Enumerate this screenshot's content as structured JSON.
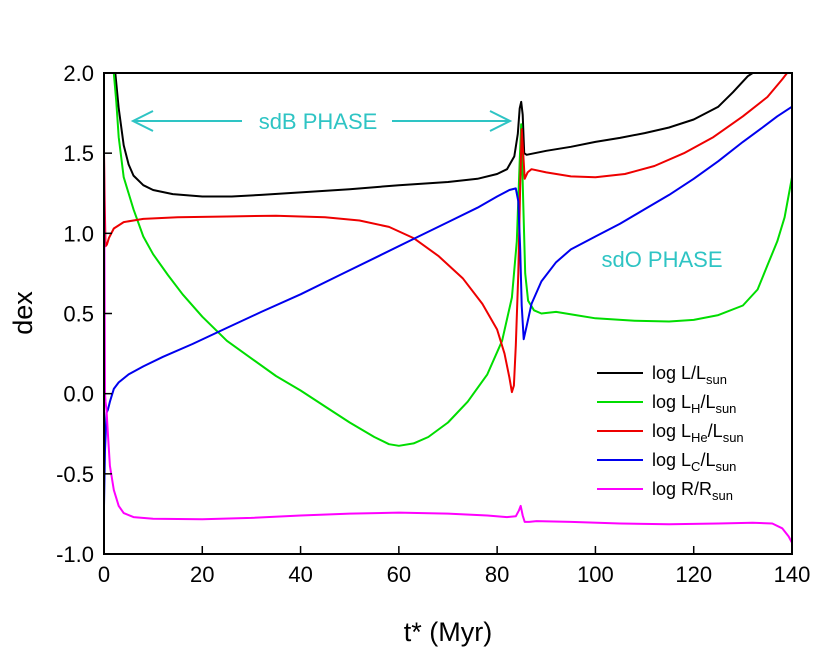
{
  "chart_data": {
    "type": "line",
    "title": "",
    "xlabel": "t* (Myr)",
    "ylabel": "dex",
    "xlim": [
      0,
      140
    ],
    "ylim": [
      -1.0,
      2.0
    ],
    "x_ticks": [
      0,
      20,
      40,
      60,
      80,
      100,
      120,
      140
    ],
    "y_ticks": [
      -1.0,
      -0.5,
      0.0,
      0.5,
      1.0,
      1.5,
      2.0
    ],
    "x_tick_labels": [
      "0",
      "20",
      "40",
      "60",
      "80",
      "100",
      "120",
      "140"
    ],
    "y_tick_labels": [
      "-1.0",
      "-0.5",
      "0.0",
      "0.5",
      "1.0",
      "1.5",
      "2.0"
    ],
    "grid": false,
    "legend_position": "right",
    "annotations": [
      {
        "text": "sdB PHASE",
        "x": 38,
        "y": 1.72,
        "arrow_from": 6,
        "arrow_to": 83,
        "color": "#2EC4C4"
      },
      {
        "text": "sdO PHASE",
        "x": 116,
        "y": 0.83,
        "color": "#2EC4C4"
      }
    ],
    "series": [
      {
        "name": "log L/Lsun",
        "legend_main": "log L/L",
        "legend_sub": "sun",
        "color": "#000000",
        "points": [
          [
            2.3,
            2.0
          ],
          [
            3,
            1.78
          ],
          [
            4,
            1.55
          ],
          [
            5,
            1.43
          ],
          [
            6,
            1.36
          ],
          [
            8,
            1.3
          ],
          [
            10,
            1.27
          ],
          [
            14,
            1.245
          ],
          [
            20,
            1.23
          ],
          [
            26,
            1.23
          ],
          [
            32,
            1.24
          ],
          [
            40,
            1.255
          ],
          [
            50,
            1.275
          ],
          [
            60,
            1.3
          ],
          [
            70,
            1.32
          ],
          [
            76,
            1.34
          ],
          [
            80,
            1.37
          ],
          [
            82,
            1.4
          ],
          [
            83.5,
            1.48
          ],
          [
            84.2,
            1.62
          ],
          [
            84.6,
            1.78
          ],
          [
            84.9,
            1.82
          ],
          [
            85.2,
            1.74
          ],
          [
            85.5,
            1.5
          ],
          [
            86,
            1.49
          ],
          [
            90,
            1.515
          ],
          [
            95,
            1.54
          ],
          [
            100,
            1.57
          ],
          [
            105,
            1.595
          ],
          [
            110,
            1.625
          ],
          [
            115,
            1.66
          ],
          [
            120,
            1.71
          ],
          [
            125,
            1.79
          ],
          [
            128,
            1.88
          ],
          [
            131,
            1.98
          ],
          [
            132,
            2.0
          ]
        ]
      },
      {
        "name": "log LH/Lsun",
        "legend_main": "log L",
        "legend_sub_1": "H",
        "legend_mid": "/L",
        "legend_sub": "sun",
        "color": "#00DD00",
        "points": [
          [
            2.0,
            2.0
          ],
          [
            2.5,
            1.82
          ],
          [
            3,
            1.6
          ],
          [
            4,
            1.35
          ],
          [
            6,
            1.15
          ],
          [
            8,
            0.98
          ],
          [
            10,
            0.87
          ],
          [
            13,
            0.74
          ],
          [
            16,
            0.62
          ],
          [
            20,
            0.48
          ],
          [
            25,
            0.33
          ],
          [
            30,
            0.22
          ],
          [
            35,
            0.11
          ],
          [
            40,
            0.02
          ],
          [
            45,
            -0.08
          ],
          [
            50,
            -0.18
          ],
          [
            55,
            -0.27
          ],
          [
            58,
            -0.315
          ],
          [
            60,
            -0.325
          ],
          [
            63,
            -0.31
          ],
          [
            66,
            -0.27
          ],
          [
            70,
            -0.18
          ],
          [
            74,
            -0.05
          ],
          [
            78,
            0.12
          ],
          [
            81,
            0.33
          ],
          [
            83,
            0.6
          ],
          [
            84,
            0.95
          ],
          [
            84.6,
            1.45
          ],
          [
            84.9,
            1.68
          ],
          [
            85.3,
            1.2
          ],
          [
            85.7,
            0.75
          ],
          [
            86.3,
            0.58
          ],
          [
            87.5,
            0.52
          ],
          [
            89,
            0.5
          ],
          [
            92,
            0.51
          ],
          [
            96,
            0.49
          ],
          [
            100,
            0.47
          ],
          [
            108,
            0.455
          ],
          [
            115,
            0.45
          ],
          [
            120,
            0.46
          ],
          [
            125,
            0.49
          ],
          [
            130,
            0.55
          ],
          [
            133,
            0.65
          ],
          [
            135,
            0.8
          ],
          [
            137,
            0.95
          ],
          [
            138.5,
            1.1
          ],
          [
            140,
            1.35
          ]
        ]
      },
      {
        "name": "log LHe/Lsun",
        "legend_main": "log L",
        "legend_sub_1": "He",
        "legend_mid": "/L",
        "legend_sub": "sun",
        "color": "#EE0000",
        "points": [
          [
            0.0,
            1.5
          ],
          [
            0.15,
            1.2
          ],
          [
            0.3,
            0.92
          ],
          [
            0.6,
            0.93
          ],
          [
            1.0,
            0.97
          ],
          [
            2,
            1.03
          ],
          [
            4,
            1.07
          ],
          [
            8,
            1.09
          ],
          [
            15,
            1.1
          ],
          [
            25,
            1.105
          ],
          [
            35,
            1.11
          ],
          [
            45,
            1.1
          ],
          [
            52,
            1.08
          ],
          [
            58,
            1.04
          ],
          [
            63,
            0.97
          ],
          [
            68,
            0.86
          ],
          [
            73,
            0.72
          ],
          [
            77,
            0.56
          ],
          [
            80,
            0.4
          ],
          [
            81.5,
            0.25
          ],
          [
            82.5,
            0.1
          ],
          [
            83,
            0.01
          ],
          [
            83.4,
            0.05
          ],
          [
            83.8,
            0.3
          ],
          [
            84.3,
            0.75
          ],
          [
            84.7,
            1.3
          ],
          [
            85.0,
            1.65
          ],
          [
            85.3,
            1.5
          ],
          [
            85.6,
            1.34
          ],
          [
            86.2,
            1.38
          ],
          [
            87,
            1.4
          ],
          [
            90,
            1.38
          ],
          [
            95,
            1.355
          ],
          [
            100,
            1.35
          ],
          [
            106,
            1.37
          ],
          [
            112,
            1.42
          ],
          [
            118,
            1.5
          ],
          [
            124,
            1.6
          ],
          [
            130,
            1.73
          ],
          [
            135,
            1.85
          ],
          [
            138,
            1.96
          ],
          [
            139,
            2.0
          ]
        ]
      },
      {
        "name": "log LC/Lsun",
        "legend_main": "log L",
        "legend_sub_1": "C",
        "legend_mid": "/L",
        "legend_sub": "sun",
        "color": "#0000EE",
        "points": [
          [
            0.0,
            -0.7
          ],
          [
            0.2,
            -0.35
          ],
          [
            0.5,
            -0.12
          ],
          [
            0.8,
            -0.1
          ],
          [
            1.2,
            -0.05
          ],
          [
            2,
            0.03
          ],
          [
            3,
            0.07
          ],
          [
            5,
            0.12
          ],
          [
            8,
            0.17
          ],
          [
            12,
            0.23
          ],
          [
            18,
            0.31
          ],
          [
            25,
            0.41
          ],
          [
            32,
            0.51
          ],
          [
            40,
            0.62
          ],
          [
            48,
            0.74
          ],
          [
            56,
            0.86
          ],
          [
            64,
            0.98
          ],
          [
            70,
            1.07
          ],
          [
            76,
            1.16
          ],
          [
            80,
            1.23
          ],
          [
            82.5,
            1.27
          ],
          [
            83.8,
            1.28
          ],
          [
            84.3,
            1.2
          ],
          [
            84.7,
            0.9
          ],
          [
            85.0,
            0.55
          ],
          [
            85.4,
            0.34
          ],
          [
            86,
            0.42
          ],
          [
            87,
            0.56
          ],
          [
            89,
            0.7
          ],
          [
            92,
            0.82
          ],
          [
            95,
            0.9
          ],
          [
            100,
            0.98
          ],
          [
            105,
            1.06
          ],
          [
            110,
            1.15
          ],
          [
            115,
            1.24
          ],
          [
            120,
            1.34
          ],
          [
            125,
            1.45
          ],
          [
            130,
            1.57
          ],
          [
            134,
            1.66
          ],
          [
            137,
            1.73
          ],
          [
            140,
            1.79
          ]
        ]
      },
      {
        "name": "log R/Rsun",
        "legend_main": "log R/R",
        "legend_sub": "sun",
        "color": "#FF00FF",
        "points": [
          [
            0.0,
            1.5
          ],
          [
            0.1,
            0.8
          ],
          [
            0.2,
            0.0
          ],
          [
            0.3,
            -0.05
          ],
          [
            0.5,
            -0.1
          ],
          [
            0.8,
            -0.25
          ],
          [
            1.2,
            -0.45
          ],
          [
            2,
            -0.6
          ],
          [
            3,
            -0.7
          ],
          [
            4,
            -0.745
          ],
          [
            6,
            -0.77
          ],
          [
            10,
            -0.78
          ],
          [
            20,
            -0.783
          ],
          [
            30,
            -0.775
          ],
          [
            40,
            -0.76
          ],
          [
            50,
            -0.748
          ],
          [
            60,
            -0.742
          ],
          [
            70,
            -0.748
          ],
          [
            78,
            -0.76
          ],
          [
            82,
            -0.77
          ],
          [
            83.8,
            -0.765
          ],
          [
            84.4,
            -0.73
          ],
          [
            84.8,
            -0.7
          ],
          [
            85.2,
            -0.76
          ],
          [
            85.6,
            -0.8
          ],
          [
            86.5,
            -0.8
          ],
          [
            88,
            -0.795
          ],
          [
            95,
            -0.8
          ],
          [
            105,
            -0.81
          ],
          [
            115,
            -0.815
          ],
          [
            125,
            -0.81
          ],
          [
            132,
            -0.805
          ],
          [
            136,
            -0.81
          ],
          [
            138,
            -0.84
          ],
          [
            139.3,
            -0.89
          ],
          [
            140,
            -0.93
          ]
        ]
      }
    ]
  }
}
